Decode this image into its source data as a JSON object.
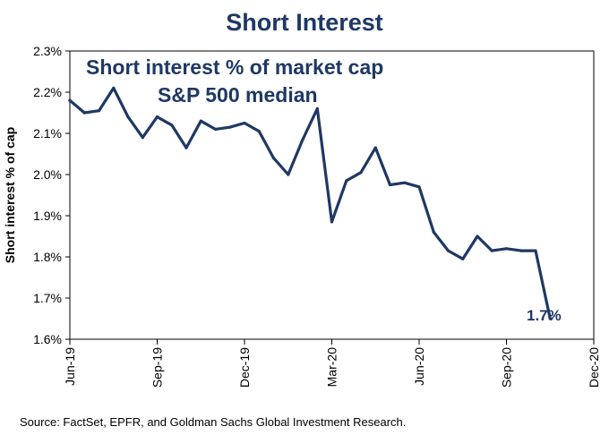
{
  "chart_data": {
    "type": "line",
    "title": "Short Interest",
    "annotation_line1": "Short interest % of market cap",
    "annotation_line2": "S&P 500 median",
    "ylabel": "Short interest % of cap",
    "xlabel": "",
    "ylim": [
      1.6,
      2.3
    ],
    "yticks": [
      1.6,
      1.7,
      1.8,
      1.9,
      2.0,
      2.1,
      2.2,
      2.3
    ],
    "ytick_labels": [
      "1.6%",
      "1.7%",
      "1.8%",
      "1.9%",
      "2.0%",
      "2.1%",
      "2.2%",
      "2.3%"
    ],
    "xlim": [
      0,
      18
    ],
    "xticks": [
      0,
      3,
      6,
      9,
      12,
      15,
      18
    ],
    "xtick_labels": [
      "Jun-19",
      "Sep-19",
      "Dec-19",
      "Mar-20",
      "Jun-20",
      "Sep-20",
      "Dec-20"
    ],
    "series": [
      {
        "name": "S&P 500 median",
        "color": "#1f3864",
        "x": [
          0,
          0.5,
          1,
          1.5,
          2,
          2.5,
          3,
          3.5,
          4,
          4.5,
          5,
          5.5,
          6,
          6.5,
          7,
          7.5,
          8,
          8.5,
          9,
          9.5,
          10,
          10.5,
          11,
          11.5,
          12,
          12.5,
          13,
          13.5,
          14,
          14.5,
          15,
          15.5,
          16,
          16.5
        ],
        "values": [
          2.18,
          2.15,
          2.155,
          2.21,
          2.14,
          2.09,
          2.14,
          2.12,
          2.065,
          2.13,
          2.11,
          2.115,
          2.125,
          2.105,
          2.04,
          2.0,
          2.085,
          2.16,
          1.885,
          1.985,
          2.005,
          2.065,
          1.975,
          1.98,
          1.97,
          1.86,
          1.815,
          1.795,
          1.85,
          1.815,
          1.82,
          1.815,
          1.815,
          1.65
        ]
      }
    ],
    "end_label": "1.7%",
    "grid": false,
    "legend": "none"
  },
  "source": "Source: FactSet, EPFR, and Goldman Sachs Global Investment Research."
}
